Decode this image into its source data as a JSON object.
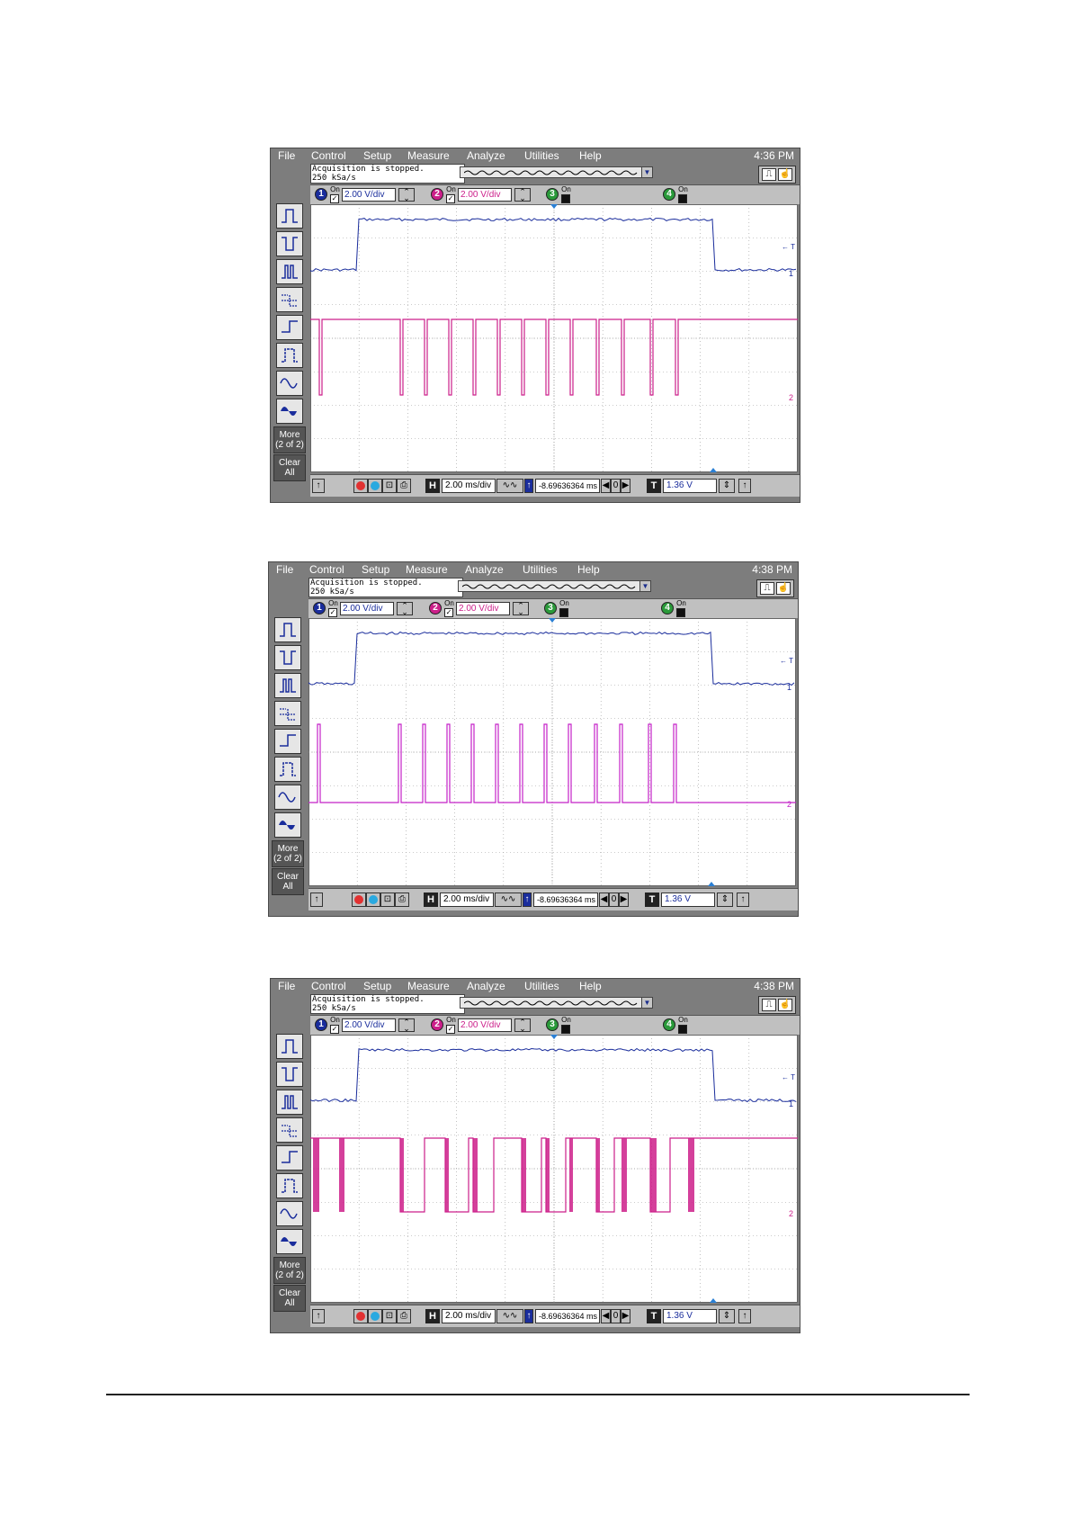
{
  "menu": {
    "file": "File",
    "control": "Control",
    "setup": "Setup",
    "measure": "Measure",
    "analyze": "Analyze",
    "utilities": "Utilities",
    "help": "Help"
  },
  "status": {
    "line1": "Acquisition is stopped.",
    "line2": "250 kSa/s"
  },
  "channels": {
    "ch1": {
      "num": "1",
      "on": "On",
      "scale": "2.00 V/div",
      "color": "#1a2d9c"
    },
    "ch2": {
      "num": "2",
      "on": "On",
      "scale": "2.00 V/div",
      "color": "#cc1f8a"
    },
    "ch3": {
      "num": "3",
      "on": "On",
      "color": "#2a9a3a"
    },
    "ch4": {
      "num": "4",
      "on": "On",
      "color": "#2a9a3a"
    }
  },
  "side": {
    "more_line1": "More",
    "more_line2": "(2 of 2)",
    "clear_line1": "Clear",
    "clear_line2": "All"
  },
  "bottom": {
    "h_label": "H",
    "timebase": "2.00 ms/div",
    "delay": "-8.69636364 ms",
    "t_label": "T",
    "trigger_level": "1.36 V"
  },
  "markers": {
    "trigger": "← T",
    "ch1_marker": "1",
    "ch2_marker": "2"
  },
  "captures": [
    {
      "id": "capture-1",
      "time": "4:36 PM",
      "ch2_color": "#cc1f8a",
      "ch2_mode": "inverted-pulses"
    },
    {
      "id": "capture-2",
      "time": "4:38 PM",
      "ch2_color": "#c421c8",
      "ch2_mode": "positive-pulses"
    },
    {
      "id": "capture-3",
      "time": "4:38 PM",
      "ch2_color": "#cc1f8a",
      "ch2_mode": "inverted-bursts"
    }
  ],
  "colors": {
    "ch1": "#1a2d9c",
    "grid": "#9a9a9a",
    "chrome": "#7d7d7d",
    "panel": "#c0c0c0"
  }
}
